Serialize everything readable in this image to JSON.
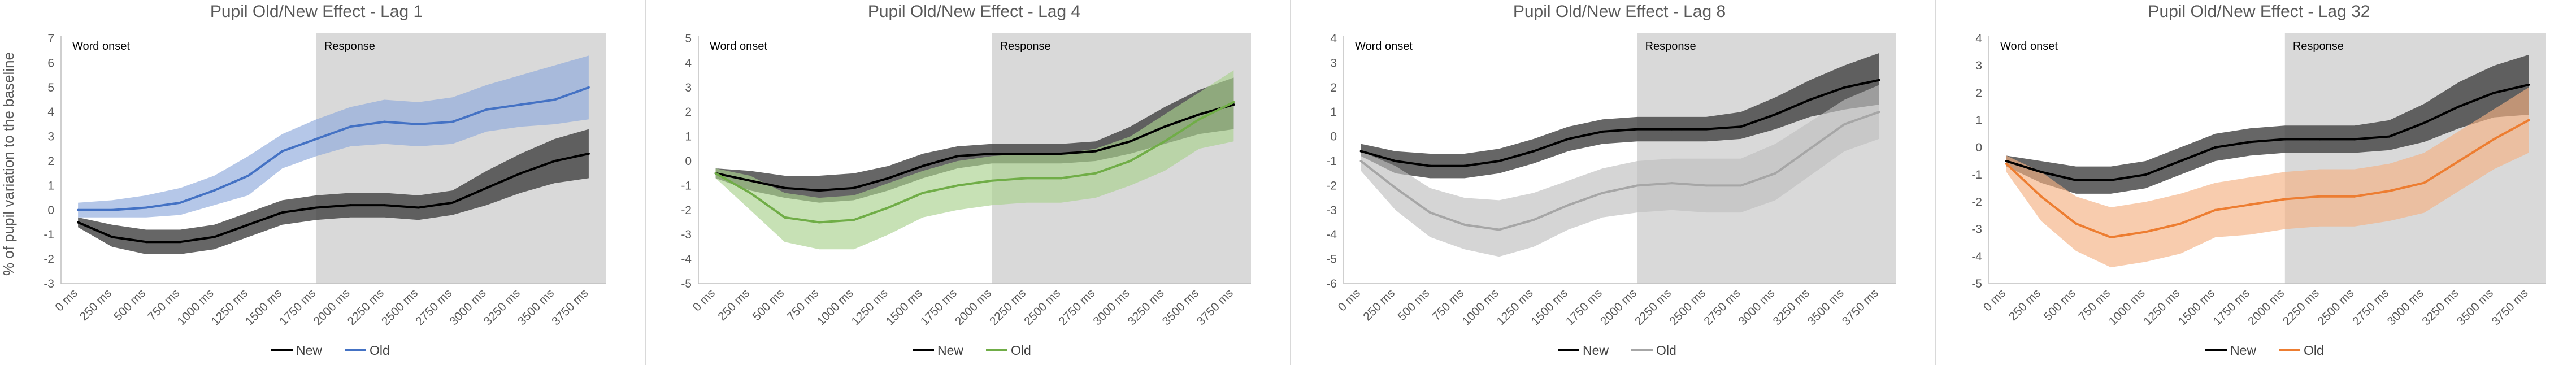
{
  "chart_data": [
    {
      "type": "line",
      "title": "Pupil Old/New Effect - Lag 1",
      "ylabel": "% of pupil variation to the baseline",
      "categories": [
        "0 ms",
        "250 ms",
        "500 ms",
        "750 ms",
        "1000 ms",
        "1250 ms",
        "1500 ms",
        "1750 ms",
        "2000 ms",
        "2250 ms",
        "2500 ms",
        "2750 ms",
        "3000 ms",
        "3250 ms",
        "3500 ms",
        "3750 ms"
      ],
      "yticks": [
        "-3",
        "-2",
        "-1",
        "0",
        "1",
        "2",
        "3",
        "4",
        "5",
        "6",
        "7"
      ],
      "ylim": [
        -3,
        7
      ],
      "annotations": {
        "onset": "Word onset",
        "response": "Response"
      },
      "response_start": "1750 ms",
      "series": [
        {
          "name": "New",
          "color": "#000000",
          "band_color": "#404040",
          "values": [
            -0.5,
            -1.1,
            -1.3,
            -1.3,
            -1.1,
            -0.6,
            -0.1,
            0.1,
            0.2,
            0.2,
            0.1,
            0.3,
            0.9,
            1.5,
            2.0,
            2.3
          ],
          "upper": [
            -0.3,
            -0.6,
            -0.8,
            -0.8,
            -0.6,
            -0.1,
            0.4,
            0.6,
            0.7,
            0.7,
            0.6,
            0.8,
            1.6,
            2.3,
            2.9,
            3.3
          ],
          "lower": [
            -0.7,
            -1.5,
            -1.8,
            -1.8,
            -1.6,
            -1.1,
            -0.6,
            -0.4,
            -0.3,
            -0.3,
            -0.4,
            -0.2,
            0.2,
            0.7,
            1.1,
            1.3
          ]
        },
        {
          "name": "Old",
          "color": "#4472C4",
          "band_color": "#8EA9DB",
          "values": [
            0.0,
            0.0,
            0.1,
            0.3,
            0.8,
            1.4,
            2.4,
            2.9,
            3.4,
            3.6,
            3.5,
            3.6,
            4.1,
            4.3,
            4.5,
            5.0
          ],
          "upper": [
            0.3,
            0.4,
            0.6,
            0.9,
            1.4,
            2.2,
            3.1,
            3.7,
            4.2,
            4.5,
            4.4,
            4.6,
            5.1,
            5.5,
            5.9,
            6.3
          ],
          "lower": [
            -0.3,
            -0.3,
            -0.3,
            -0.2,
            0.2,
            0.6,
            1.7,
            2.2,
            2.6,
            2.7,
            2.6,
            2.7,
            3.2,
            3.4,
            3.5,
            3.7
          ]
        }
      ]
    },
    {
      "type": "line",
      "title": "Pupil Old/New Effect - Lag 4",
      "ylabel": "",
      "categories": [
        "0 ms",
        "250 ms",
        "500 ms",
        "750 ms",
        "1000 ms",
        "1250 ms",
        "1500 ms",
        "1750 ms",
        "2000 ms",
        "2250 ms",
        "2500 ms",
        "2750 ms",
        "3000 ms",
        "3250 ms",
        "3500 ms",
        "3750 ms"
      ],
      "yticks": [
        "-5",
        "-4",
        "-3",
        "-2",
        "-1",
        "0",
        "1",
        "2",
        "3",
        "4",
        "5"
      ],
      "ylim": [
        -5,
        5
      ],
      "annotations": {
        "onset": "Word onset",
        "response": "Response"
      },
      "response_start": "2000 ms",
      "series": [
        {
          "name": "New",
          "color": "#000000",
          "band_color": "#404040",
          "values": [
            -0.5,
            -0.8,
            -1.1,
            -1.2,
            -1.1,
            -0.7,
            -0.2,
            0.2,
            0.3,
            0.3,
            0.3,
            0.4,
            0.8,
            1.4,
            1.9,
            2.3
          ],
          "upper": [
            -0.3,
            -0.4,
            -0.6,
            -0.6,
            -0.5,
            -0.2,
            0.3,
            0.6,
            0.7,
            0.7,
            0.7,
            0.8,
            1.4,
            2.2,
            2.9,
            3.4
          ],
          "lower": [
            -0.7,
            -1.2,
            -1.5,
            -1.7,
            -1.6,
            -1.2,
            -0.7,
            -0.3,
            -0.1,
            -0.1,
            -0.1,
            0.0,
            0.3,
            0.7,
            1.1,
            1.3
          ]
        },
        {
          "name": "Old",
          "color": "#70AD47",
          "band_color": "#A9D18E",
          "values": [
            -0.5,
            -1.3,
            -2.3,
            -2.5,
            -2.4,
            -1.9,
            -1.3,
            -1.0,
            -0.8,
            -0.7,
            -0.7,
            -0.5,
            0.0,
            0.8,
            1.7,
            2.4
          ],
          "upper": [
            -0.3,
            -0.6,
            -1.3,
            -1.5,
            -1.4,
            -0.9,
            -0.4,
            0.0,
            0.2,
            0.3,
            0.3,
            0.5,
            1.0,
            1.9,
            2.8,
            3.7
          ],
          "lower": [
            -0.7,
            -2.0,
            -3.3,
            -3.6,
            -3.6,
            -3.0,
            -2.3,
            -2.0,
            -1.8,
            -1.7,
            -1.7,
            -1.5,
            -1.0,
            -0.4,
            0.5,
            0.8
          ]
        }
      ]
    },
    {
      "type": "line",
      "title": "Pupil Old/New Effect - Lag 8",
      "ylabel": "",
      "categories": [
        "0 ms",
        "250 ms",
        "500 ms",
        "750 ms",
        "1000 ms",
        "1250 ms",
        "1500 ms",
        "1750 ms",
        "2000 ms",
        "2250 ms",
        "2500 ms",
        "2750 ms",
        "3000 ms",
        "3250 ms",
        "3500 ms",
        "3750 ms"
      ],
      "yticks": [
        "-6",
        "-5",
        "-4",
        "-3",
        "-2",
        "-1",
        "0",
        "1",
        "2",
        "3",
        "4"
      ],
      "ylim": [
        -6,
        4
      ],
      "annotations": {
        "onset": "Word onset",
        "response": "Response"
      },
      "response_start": "2000 ms",
      "series": [
        {
          "name": "New",
          "color": "#000000",
          "band_color": "#404040",
          "values": [
            -0.6,
            -1.0,
            -1.2,
            -1.2,
            -1.0,
            -0.6,
            -0.1,
            0.2,
            0.3,
            0.3,
            0.3,
            0.4,
            0.9,
            1.5,
            2.0,
            2.3
          ],
          "upper": [
            -0.3,
            -0.6,
            -0.7,
            -0.7,
            -0.5,
            -0.1,
            0.4,
            0.7,
            0.8,
            0.8,
            0.8,
            1.0,
            1.6,
            2.3,
            2.9,
            3.4
          ],
          "lower": [
            -0.8,
            -1.5,
            -1.7,
            -1.7,
            -1.5,
            -1.1,
            -0.6,
            -0.3,
            -0.2,
            -0.2,
            -0.2,
            -0.1,
            0.3,
            0.8,
            1.1,
            1.3
          ]
        },
        {
          "name": "Old",
          "color": "#A6A6A6",
          "band_color": "#BFBFBF",
          "values": [
            -1.0,
            -2.1,
            -3.1,
            -3.6,
            -3.8,
            -3.4,
            -2.8,
            -2.3,
            -2.0,
            -1.9,
            -2.0,
            -2.0,
            -1.5,
            -0.5,
            0.5,
            1.0
          ],
          "upper": [
            -0.6,
            -1.2,
            -2.1,
            -2.5,
            -2.6,
            -2.3,
            -1.8,
            -1.3,
            -1.0,
            -0.9,
            -0.9,
            -0.9,
            -0.3,
            0.6,
            1.5,
            2.1
          ],
          "lower": [
            -1.4,
            -3.0,
            -4.1,
            -4.6,
            -4.9,
            -4.5,
            -3.8,
            -3.3,
            -3.1,
            -3.0,
            -3.1,
            -3.1,
            -2.6,
            -1.6,
            -0.6,
            -0.1
          ]
        }
      ]
    },
    {
      "type": "line",
      "title": "Pupil Old/New Effect - Lag 32",
      "ylabel": "",
      "categories": [
        "0 ms",
        "250 ms",
        "500 ms",
        "750 ms",
        "1000 ms",
        "1250 ms",
        "1500 ms",
        "1750 ms",
        "2000 ms",
        "2250 ms",
        "2500 ms",
        "2750 ms",
        "3000 ms",
        "3250 ms",
        "3500 ms",
        "3750 ms"
      ],
      "yticks": [
        "-5",
        "-4",
        "-3",
        "-2",
        "-1",
        "0",
        "1",
        "2",
        "3",
        "4"
      ],
      "ylim": [
        -5,
        4
      ],
      "annotations": {
        "onset": "Word onset",
        "response": "Response"
      },
      "response_start": "2000 ms",
      "series": [
        {
          "name": "New",
          "color": "#000000",
          "band_color": "#404040",
          "values": [
            -0.5,
            -0.9,
            -1.2,
            -1.2,
            -1.0,
            -0.5,
            0.0,
            0.2,
            0.3,
            0.3,
            0.3,
            0.4,
            0.9,
            1.5,
            2.0,
            2.3
          ],
          "upper": [
            -0.3,
            -0.5,
            -0.7,
            -0.7,
            -0.5,
            0.0,
            0.5,
            0.7,
            0.8,
            0.8,
            0.8,
            1.0,
            1.6,
            2.4,
            3.0,
            3.4
          ],
          "lower": [
            -0.7,
            -1.3,
            -1.7,
            -1.7,
            -1.5,
            -1.0,
            -0.5,
            -0.3,
            -0.2,
            -0.2,
            -0.2,
            -0.1,
            0.2,
            0.7,
            1.1,
            1.2
          ]
        },
        {
          "name": "Old",
          "color": "#ED7D31",
          "band_color": "#F4B183",
          "values": [
            -0.6,
            -1.8,
            -2.8,
            -3.3,
            -3.1,
            -2.8,
            -2.3,
            -2.1,
            -1.9,
            -1.8,
            -1.8,
            -1.6,
            -1.3,
            -0.5,
            0.3,
            1.0
          ],
          "upper": [
            -0.3,
            -0.9,
            -1.8,
            -2.2,
            -2.0,
            -1.7,
            -1.3,
            -1.1,
            -0.9,
            -0.8,
            -0.8,
            -0.6,
            -0.2,
            0.6,
            1.4,
            2.2
          ],
          "lower": [
            -0.9,
            -2.7,
            -3.8,
            -4.4,
            -4.2,
            -3.9,
            -3.3,
            -3.2,
            -3.0,
            -2.9,
            -2.9,
            -2.7,
            -2.4,
            -1.6,
            -0.8,
            -0.2
          ]
        }
      ]
    }
  ]
}
